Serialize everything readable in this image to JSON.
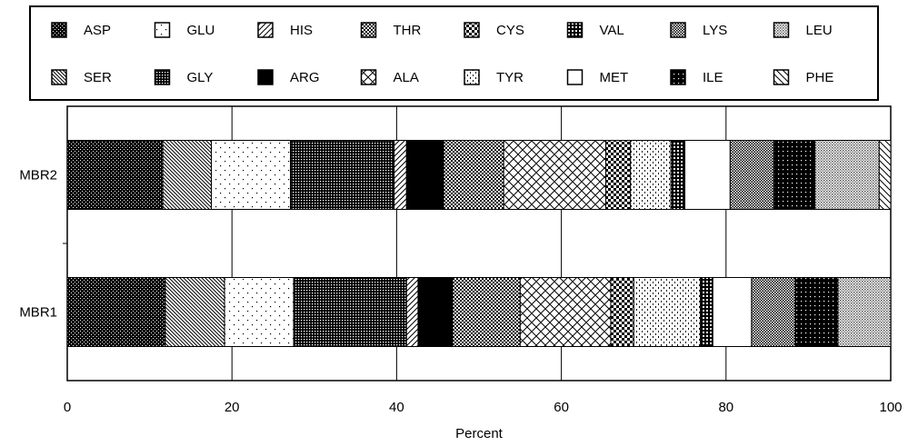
{
  "chart_data": {
    "type": "bar",
    "orientation": "horizontal",
    "stacked": true,
    "title": "",
    "xlabel": "Percent",
    "ylabel": "",
    "xlim": [
      0,
      100
    ],
    "xticks": [
      "0",
      "20",
      "40",
      "60",
      "80",
      "100"
    ],
    "grid": true,
    "legend_position": "top",
    "categories": [
      "MBR2",
      "MBR1"
    ],
    "series": [
      {
        "name": "ASP",
        "pattern": "dense-dots",
        "values": [
          11.6,
          11.9
        ]
      },
      {
        "name": "SER",
        "pattern": "diag-down",
        "values": [
          5.9,
          7.2
        ]
      },
      {
        "name": "GLU",
        "pattern": "sparse-dots",
        "values": [
          9.6,
          8.4
        ]
      },
      {
        "name": "GLY",
        "pattern": "fine-grid",
        "values": [
          12.6,
          13.7
        ]
      },
      {
        "name": "HIS",
        "pattern": "diag-up",
        "values": [
          1.5,
          1.4
        ]
      },
      {
        "name": "ARG",
        "pattern": "solid",
        "values": [
          4.5,
          4.2
        ]
      },
      {
        "name": "THR",
        "pattern": "checker-small",
        "values": [
          7.3,
          8.2
        ]
      },
      {
        "name": "ALA",
        "pattern": "crosshatch",
        "values": [
          12.4,
          11.0
        ]
      },
      {
        "name": "CYS",
        "pattern": "checker-large",
        "values": [
          3.0,
          2.8
        ]
      },
      {
        "name": "TYR",
        "pattern": "vert-dots",
        "values": [
          4.9,
          8.1
        ]
      },
      {
        "name": "VAL",
        "pattern": "medium-grid",
        "values": [
          1.7,
          1.5
        ]
      },
      {
        "name": "MET",
        "pattern": "none",
        "values": [
          5.5,
          4.7
        ]
      },
      {
        "name": "LYS",
        "pattern": "checker-fine",
        "values": [
          5.3,
          5.3
        ]
      },
      {
        "name": "ILE",
        "pattern": "sparse-dots-dark",
        "values": [
          5.0,
          5.2
        ]
      },
      {
        "name": "LEU",
        "pattern": "gray-dots",
        "values": [
          7.8,
          7.6
        ]
      },
      {
        "name": "PHE",
        "pattern": "diag-down-wide",
        "values": [
          3.7,
          3.6
        ]
      }
    ]
  }
}
